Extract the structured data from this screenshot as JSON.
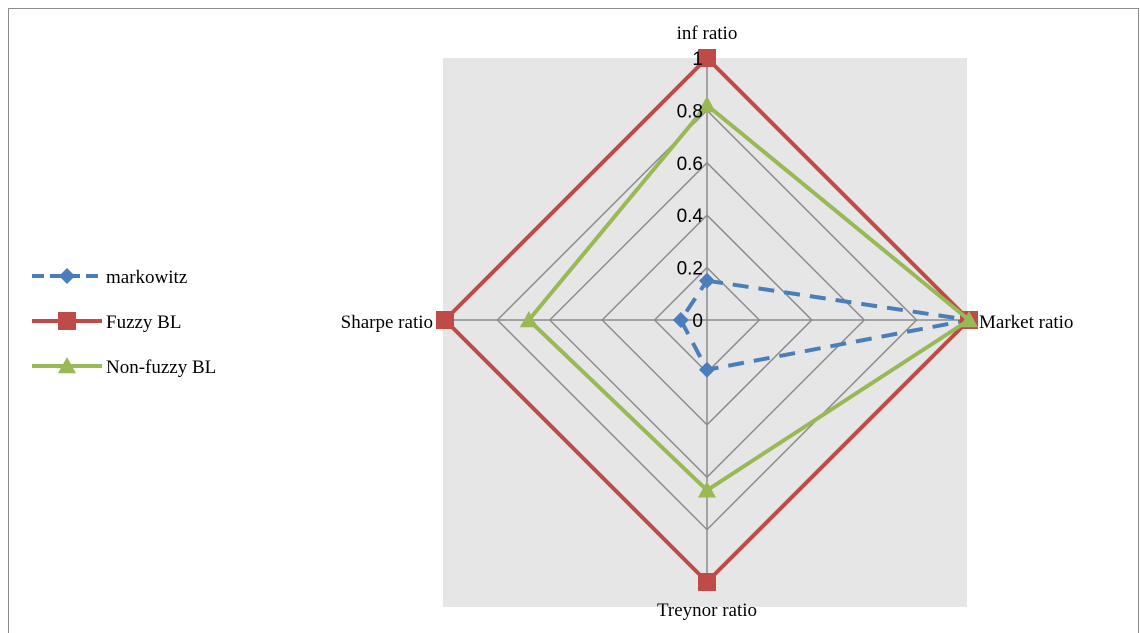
{
  "chart_data": {
    "type": "radar",
    "axes": [
      "inf ratio",
      "Market ratio",
      "Treynor ratio",
      "Sharpe ratio"
    ],
    "rlim": [
      0,
      1
    ],
    "ticks": [
      "0",
      "0.2",
      "0.4",
      "0.6",
      "0.8",
      "1"
    ],
    "tick_values": [
      0,
      0.2,
      0.4,
      0.6,
      0.8,
      1
    ],
    "grid": true,
    "legend_position": "left",
    "series": [
      {
        "name": "markowitz",
        "values": [
          0.15,
          1.0,
          0.19,
          0.1
        ],
        "color": "#4a7ebb",
        "marker": "diamond",
        "dash": true
      },
      {
        "name": "Fuzzy BL",
        "values": [
          1.0,
          1.0,
          1.0,
          1.0
        ],
        "color": "#be4b48",
        "marker": "square",
        "dash": false
      },
      {
        "name": "Non-fuzzy BL",
        "values": [
          0.82,
          1.0,
          0.65,
          0.68
        ],
        "color": "#98b954",
        "marker": "triangle",
        "dash": false
      }
    ]
  }
}
